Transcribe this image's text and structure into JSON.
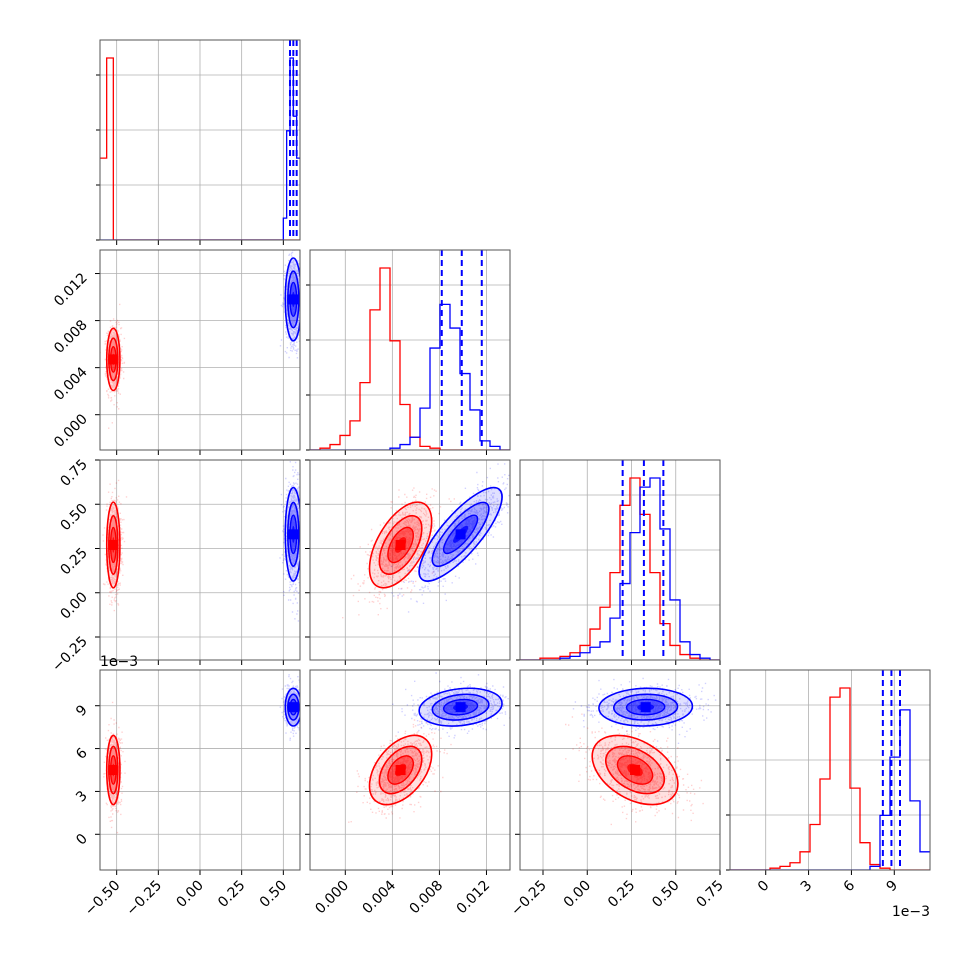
{
  "chart_data": {
    "type": "corner",
    "colors": {
      "red": "#ff0000",
      "blue": "#0000ff",
      "grid": "#b0b0b0"
    },
    "grid": true,
    "axis_ranges": {
      "x0": [
        -0.6,
        0.6
      ],
      "x1": [
        -0.003,
        0.014
      ],
      "x2": [
        -0.38,
        0.75
      ],
      "x3": [
        -0.0025,
        0.0115
      ]
    },
    "ticks": {
      "x0": {
        "values": [
          -0.5,
          -0.25,
          0.0,
          0.25,
          0.5
        ],
        "labels": [
          "−0.50",
          "−0.25",
          "0.00",
          "0.25",
          "0.50"
        ]
      },
      "x1": {
        "values": [
          0.0,
          0.004,
          0.008,
          0.012
        ],
        "labels": [
          "0.000",
          "0.004",
          "0.008",
          "0.012"
        ]
      },
      "x2": {
        "values": [
          -0.25,
          0.0,
          0.25,
          0.5,
          0.75
        ],
        "labels": [
          "−0.25",
          "0.00",
          "0.25",
          "0.50",
          "0.75"
        ]
      },
      "x3": {
        "values": [
          0.0,
          0.003,
          0.006,
          0.009
        ],
        "labels": [
          "0",
          "3",
          "6",
          "9"
        ],
        "offset_label": "1e−3"
      }
    },
    "series": [
      {
        "color": "red",
        "centers": [
          -0.52,
          0.0047,
          0.27,
          0.0045
        ],
        "sigmas": [
          0.018,
          0.0012,
          0.11,
          0.0011
        ],
        "correlations": {
          "2-1": 0.55,
          "3-1": 0.45,
          "3-2": -0.4
        },
        "quantile_lines": {},
        "hist0": {
          "edges": [
            -0.6,
            -0.56,
            -0.52,
            -0.48,
            0.6
          ],
          "counts": [
            0.45,
            1.0,
            0.0,
            0.0
          ]
        },
        "hist1": {
          "counts": [
            0.0,
            0.01,
            0.03,
            0.08,
            0.16,
            0.37,
            0.77,
            1.0,
            0.6,
            0.25,
            0.07,
            0.02,
            0.01,
            0.0,
            0.0,
            0.0,
            0.0,
            0.0,
            0.0,
            0.0
          ]
        },
        "hist2": {
          "counts": [
            0.0,
            0.0,
            0.01,
            0.01,
            0.02,
            0.04,
            0.08,
            0.17,
            0.29,
            0.48,
            0.85,
            1.0,
            0.8,
            0.48,
            0.2,
            0.08,
            0.03,
            0.01,
            0.0,
            0.0
          ]
        },
        "hist3": {
          "counts": [
            0.0,
            0.0,
            0.0,
            0.0,
            0.01,
            0.02,
            0.04,
            0.1,
            0.25,
            0.5,
            0.95,
            1.0,
            0.45,
            0.15,
            0.03,
            0.01,
            0.0,
            0.0,
            0.0,
            0.0
          ]
        }
      },
      {
        "color": "blue",
        "centers": [
          0.56,
          0.0098,
          0.33,
          0.0089
        ],
        "sigmas": [
          0.022,
          0.0016,
          0.12,
          0.0006
        ],
        "correlations": {
          "2-1": 0.8,
          "3-1": 0.2,
          "3-2": 0.05
        },
        "quantile_lines": {
          "0": [
            0.54,
            0.56,
            0.58
          ],
          "1": [
            0.0082,
            0.0099,
            0.0116
          ],
          "2": [
            0.2,
            0.32,
            0.43
          ],
          "3": [
            0.0082,
            0.0088,
            0.0094
          ]
        },
        "hist0": {
          "edges": [
            -0.6,
            0.5,
            0.52,
            0.54,
            0.56,
            0.58,
            0.6
          ],
          "counts": [
            0.0,
            0.12,
            0.6,
            1.0,
            0.68,
            0.45
          ]
        },
        "hist1": {
          "counts": [
            0.0,
            0.0,
            0.0,
            0.0,
            0.0,
            0.0,
            0.0,
            0.0,
            0.01,
            0.03,
            0.07,
            0.23,
            0.56,
            0.8,
            0.67,
            0.42,
            0.22,
            0.05,
            0.02,
            0.0
          ]
        },
        "hist2": {
          "counts": [
            0.0,
            0.0,
            0.0,
            0.0,
            0.01,
            0.02,
            0.04,
            0.07,
            0.1,
            0.23,
            0.42,
            0.7,
            0.95,
            1.0,
            0.72,
            0.33,
            0.1,
            0.03,
            0.01,
            0.0
          ]
        },
        "hist3": {
          "counts": [
            0.0,
            0.0,
            0.0,
            0.0,
            0.0,
            0.0,
            0.0,
            0.0,
            0.0,
            0.0,
            0.0,
            0.0,
            0.0,
            0.0,
            0.02,
            0.3,
            0.62,
            0.88,
            0.38,
            0.1
          ]
        }
      }
    ]
  }
}
